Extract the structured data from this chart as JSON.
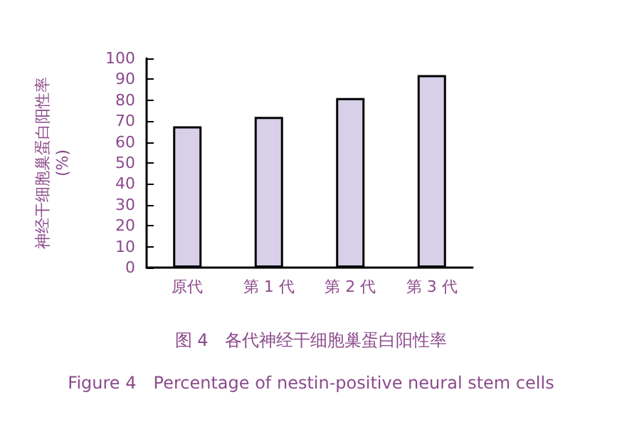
{
  "chart_data": {
    "type": "bar",
    "title": "图 4　各代神经干细胞巢蛋白阳性率",
    "subtitle": "Figure 4　Percentage of nestin-positive neural stem cells",
    "ylabel": "神经干细胞巢蛋白阳性率\n(%)",
    "categories": [
      "原代",
      "第 1 代",
      "第 2 代",
      "第 3 代"
    ],
    "values": [
      67.5,
      72,
      81,
      92
    ],
    "color": "#d8d0e8",
    "ylim": [
      0,
      100
    ],
    "yticks": [
      0,
      10,
      20,
      30,
      40,
      50,
      60,
      70,
      80,
      90,
      100
    ],
    "grid": false
  }
}
